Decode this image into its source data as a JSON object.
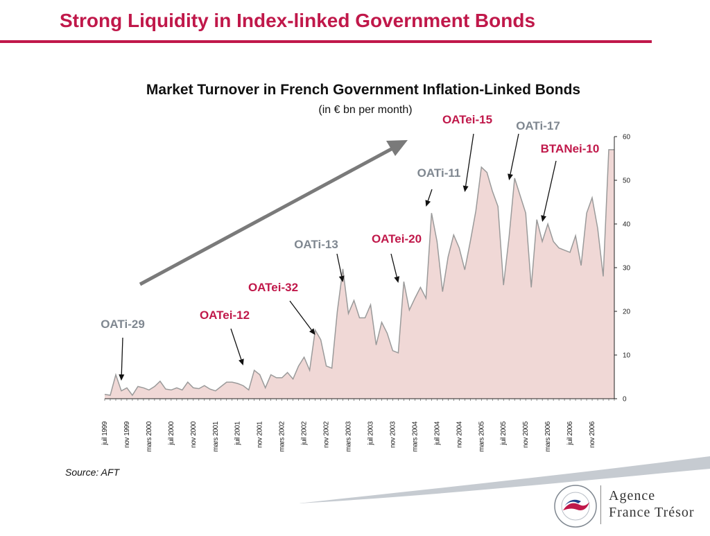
{
  "page": {
    "title": "Strong Liquidity in Index-linked Government Bonds",
    "source": "Source: AFT",
    "logo_line1": "Agence",
    "logo_line2": "France Trésor",
    "seal_text": "AGENCE FRANCE TRÉSOR · RÉPUBLIQUE FRANÇAISE"
  },
  "colors": {
    "accent": "#c0184a",
    "area_fill": "#f0d8d6",
    "area_stroke": "#9a9a9a",
    "annotation_gray": "#7f8790",
    "trend_arrow": "#7a7a7a"
  },
  "chart_data": {
    "type": "area",
    "title": "Market Turnover in French Government Inflation-Linked Bonds",
    "subtitle": "(in € bn per month)",
    "ylim": [
      0,
      60
    ],
    "yticks": [
      0,
      10,
      20,
      30,
      40,
      50,
      60
    ],
    "y_axis_side": "right",
    "grid": false,
    "x_tick_labels": [
      {
        "label": "juil 1999",
        "month_index": 0
      },
      {
        "label": "nov 1999",
        "month_index": 4
      },
      {
        "label": "mars 2000",
        "month_index": 8
      },
      {
        "label": "juil 2000",
        "month_index": 12
      },
      {
        "label": "nov 2000",
        "month_index": 16
      },
      {
        "label": "mars 2001",
        "month_index": 20
      },
      {
        "label": "juil 2001",
        "month_index": 24
      },
      {
        "label": "nov 2001",
        "month_index": 28
      },
      {
        "label": "mars 2002",
        "month_index": 32
      },
      {
        "label": "juil 2002",
        "month_index": 36
      },
      {
        "label": "nov 2002",
        "month_index": 40
      },
      {
        "label": "mars 2003",
        "month_index": 44
      },
      {
        "label": "juil 2003",
        "month_index": 48
      },
      {
        "label": "nov 2003",
        "month_index": 52
      },
      {
        "label": "mars 2004",
        "month_index": 56
      },
      {
        "label": "juil 2004",
        "month_index": 60
      },
      {
        "label": "nov 2004",
        "month_index": 64
      },
      {
        "label": "mars 2005",
        "month_index": 68
      },
      {
        "label": "juil 2005",
        "month_index": 72
      },
      {
        "label": "nov 2005",
        "month_index": 76
      },
      {
        "label": "mars 2006",
        "month_index": 80
      },
      {
        "label": "juil 2006",
        "month_index": 84
      },
      {
        "label": "nov 2006",
        "month_index": 88
      }
    ],
    "values": [
      1,
      0.8,
      5.5,
      1.8,
      2.5,
      0.8,
      2.8,
      2.5,
      2,
      2.8,
      4,
      2.2,
      2,
      2.5,
      2,
      3.8,
      2.5,
      2.3,
      3,
      2.2,
      1.8,
      2.8,
      3.8,
      3.8,
      3.5,
      3,
      2,
      6.5,
      5.5,
      2.5,
      5.5,
      4.8,
      4.8,
      6,
      4.5,
      7.5,
      9.5,
      6.5,
      15.7,
      13.5,
      7.5,
      7,
      20,
      29.7,
      19.5,
      22.5,
      18.5,
      18.5,
      21.5,
      12.3,
      17.5,
      15,
      11,
      10.5,
      26.8,
      20.3,
      23,
      25.5,
      23,
      42.5,
      36,
      24.5,
      32.5,
      37.5,
      34.5,
      29.5,
      36,
      43,
      53,
      51.8,
      47.5,
      44,
      26,
      37,
      50.5,
      46.5,
      42.5,
      25.5,
      41,
      36,
      40,
      36,
      34.5,
      34,
      33.5,
      37.3,
      30.5,
      42.5,
      46,
      39,
      28,
      57,
      57
    ],
    "annotations": [
      {
        "label": "OATi-29",
        "color": "gray",
        "month_index": 3
      },
      {
        "label": "OATei-12",
        "color": "red",
        "month_index": 25
      },
      {
        "label": "OATei-32",
        "color": "red",
        "month_index": 38
      },
      {
        "label": "OATi-13",
        "color": "gray",
        "month_index": 43
      },
      {
        "label": "OATei-20",
        "color": "red",
        "month_index": 53
      },
      {
        "label": "OATi-11",
        "color": "gray",
        "month_index": 58
      },
      {
        "label": "OATei-15",
        "color": "red",
        "month_index": 65
      },
      {
        "label": "OATi-17",
        "color": "gray",
        "month_index": 73
      },
      {
        "label": "BTANei-10",
        "color": "red",
        "month_index": 79
      }
    ]
  }
}
